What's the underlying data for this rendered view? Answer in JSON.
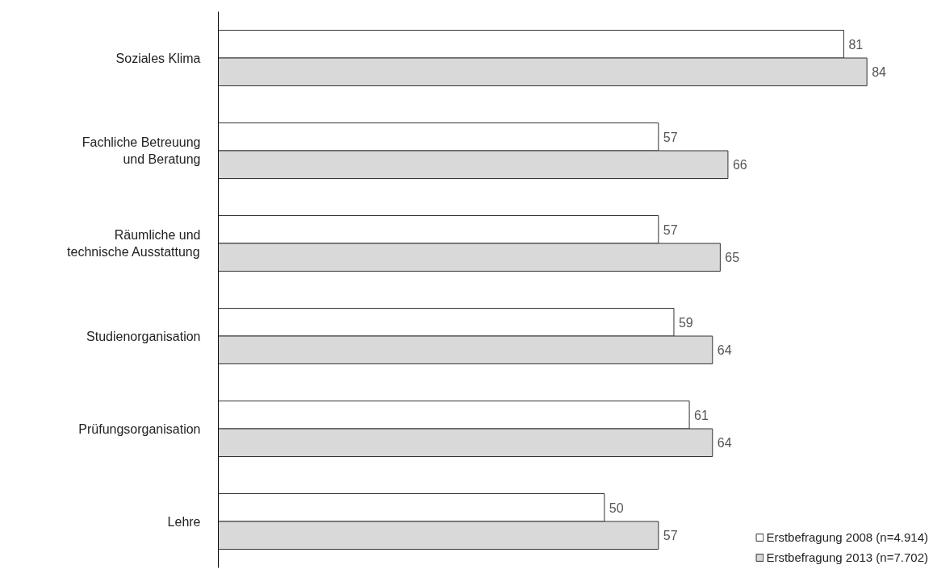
{
  "chart_data": {
    "type": "bar",
    "orientation": "horizontal",
    "categories": [
      "Soziales Klima",
      "Fachliche Betreuung\nund Beratung",
      "Räumliche und\ntechnische Ausstattung",
      "Studienorganisation",
      "Prüfungsorganisation",
      "Lehre"
    ],
    "series": [
      {
        "name": "Erstbefragung 2008 (n=4.914)",
        "color": "#ffffff",
        "values": [
          81,
          57,
          57,
          59,
          61,
          50
        ]
      },
      {
        "name": "Erstbefragung 2013 (n=7.702)",
        "color": "#d9d9d9",
        "values": [
          84,
          66,
          65,
          64,
          64,
          57
        ]
      }
    ],
    "data_labels": true,
    "legend": "bottom right",
    "grid": false
  }
}
